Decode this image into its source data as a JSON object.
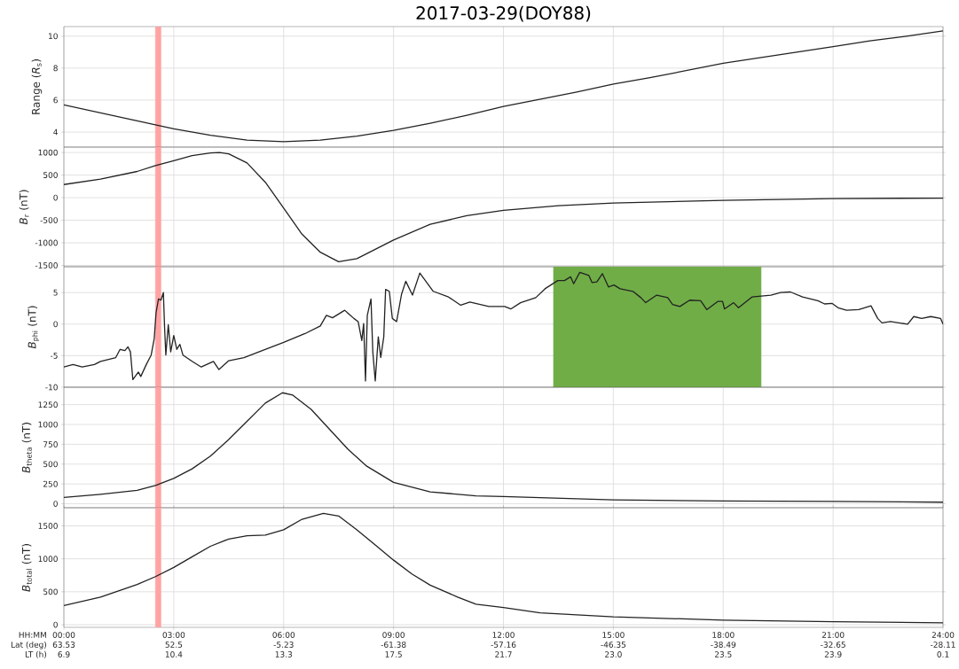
{
  "chart_data": [
    {
      "type": "line",
      "title": "2017-03-29(DOY88)",
      "ylabel": "Range (*R*$_{s}$)",
      "color": "#222222",
      "grid": true,
      "tick_labels": "y",
      "xlim": [
        "2017-03-29T00:00",
        "2017-03-30T00:00"
      ],
      "xticks": [
        "2017-03-29T00:00",
        "2017-03-29T03:00",
        "2017-03-29T06:00",
        "2017-03-29T09:00",
        "2017-03-29T12:00",
        "2017-03-29T15:00",
        "2017-03-29T18:00",
        "2017-03-29T21:00",
        "2017-03-30T00:00"
      ],
      "ylim": [
        3.06,
        10.6
      ],
      "yticks": [
        4,
        6,
        8,
        10
      ],
      "bands": [
        {
          "axis": "x",
          "from": "2017-03-29T02:30",
          "to": "2017-03-29T02:39",
          "color": "#ffa3a3"
        }
      ],
      "x": [
        "2017-03-29T00:00",
        "2017-03-29T01:00",
        "2017-03-29T02:00",
        "2017-03-29T02:30",
        "2017-03-29T03:00",
        "2017-03-29T04:00",
        "2017-03-29T05:00",
        "2017-03-29T06:00",
        "2017-03-29T07:00",
        "2017-03-29T08:00",
        "2017-03-29T09:00",
        "2017-03-29T10:00",
        "2017-03-29T11:00",
        "2017-03-29T12:00",
        "2017-03-29T13:00",
        "2017-03-29T14:00",
        "2017-03-29T15:00",
        "2017-03-29T16:00",
        "2017-03-29T17:00",
        "2017-03-29T18:00",
        "2017-03-29T19:00",
        "2017-03-29T20:00",
        "2017-03-29T21:00",
        "2017-03-29T22:00",
        "2017-03-29T23:00",
        "2017-03-30T00:00"
      ],
      "values": [
        5.7,
        5.2,
        4.7,
        4.45,
        4.2,
        3.8,
        3.5,
        3.4,
        3.5,
        3.75,
        4.1,
        4.55,
        5.05,
        5.6,
        6.05,
        6.5,
        7.0,
        7.4,
        7.85,
        8.3,
        8.65,
        9.0,
        9.35,
        9.7,
        10.0,
        10.33
      ]
    },
    {
      "type": "line",
      "ylabel": "*B*$_{r}$ (nT)",
      "color": "#222222",
      "grid": true,
      "tick_labels": "y",
      "xlim": [
        "2017-03-29T00:00",
        "2017-03-30T00:00"
      ],
      "xticks": [
        "2017-03-29T00:00",
        "2017-03-29T03:00",
        "2017-03-29T06:00",
        "2017-03-29T09:00",
        "2017-03-29T12:00",
        "2017-03-29T15:00",
        "2017-03-29T18:00",
        "2017-03-29T21:00",
        "2017-03-30T00:00"
      ],
      "ylim": [
        -1530,
        1120
      ],
      "yticks": [
        -1500,
        -1000,
        -500,
        0,
        500,
        1000
      ],
      "bands": [
        {
          "axis": "x",
          "from": "2017-03-29T02:30",
          "to": "2017-03-29T02:39",
          "color": "#ffa3a3"
        }
      ],
      "x": [
        "2017-03-29T00:00",
        "2017-03-29T01:00",
        "2017-03-29T02:00",
        "2017-03-29T02:30",
        "2017-03-29T03:00",
        "2017-03-29T03:30",
        "2017-03-29T04:00",
        "2017-03-29T04:15",
        "2017-03-29T04:30",
        "2017-03-29T05:00",
        "2017-03-29T05:30",
        "2017-03-29T06:00",
        "2017-03-29T06:30",
        "2017-03-29T07:00",
        "2017-03-29T07:30",
        "2017-03-29T08:00",
        "2017-03-29T09:00",
        "2017-03-29T10:00",
        "2017-03-29T11:00",
        "2017-03-29T12:00",
        "2017-03-29T13:30",
        "2017-03-29T15:00",
        "2017-03-29T18:00",
        "2017-03-29T21:00",
        "2017-03-30T00:00"
      ],
      "values": [
        290,
        410,
        580,
        710,
        820,
        930,
        990,
        1000,
        970,
        770,
        340,
        -230,
        -810,
        -1210,
        -1420,
        -1350,
        -940,
        -590,
        -400,
        -280,
        -180,
        -120,
        -60,
        -20,
        -10
      ]
    },
    {
      "type": "line",
      "ylabel": "*B*$_{phi}$ (nT)",
      "color": "#222222",
      "grid": true,
      "tick_labels": "y",
      "xlim": [
        "2017-03-29T00:00",
        "2017-03-30T00:00"
      ],
      "xticks": [
        "2017-03-29T00:00",
        "2017-03-29T03:00",
        "2017-03-29T06:00",
        "2017-03-29T09:00",
        "2017-03-29T12:00",
        "2017-03-29T15:00",
        "2017-03-29T18:00",
        "2017-03-29T21:00",
        "2017-03-30T00:00"
      ],
      "ylim": [
        -10,
        9.1
      ],
      "yticks": [
        -10,
        -5,
        0,
        5
      ],
      "bands": [
        {
          "axis": "x",
          "from": "2017-03-29T02:30",
          "to": "2017-03-29T02:39",
          "color": "#ffa3a3"
        },
        {
          "axis": "x",
          "from": "2017-03-29T13:22",
          "to": "2017-03-29T19:02",
          "color": "#70ad47"
        }
      ],
      "x": [
        "2017-03-29T00:00",
        "2017-03-29T00:15",
        "2017-03-29T00:30",
        "2017-03-29T00:50",
        "2017-03-29T01:00",
        "2017-03-29T01:25",
        "2017-03-29T01:32",
        "2017-03-29T01:40",
        "2017-03-29T01:45",
        "2017-03-29T01:49",
        "2017-03-29T01:53",
        "2017-03-29T02:02",
        "2017-03-29T02:06",
        "2017-03-29T02:15",
        "2017-03-29T02:23",
        "2017-03-29T02:28",
        "2017-03-29T02:31",
        "2017-03-29T02:35",
        "2017-03-29T02:39",
        "2017-03-29T02:43",
        "2017-03-29T02:45",
        "2017-03-29T02:47",
        "2017-03-29T02:51",
        "2017-03-29T02:55",
        "2017-03-29T03:00",
        "2017-03-29T03:05",
        "2017-03-29T03:10",
        "2017-03-29T03:15",
        "2017-03-29T03:30",
        "2017-03-29T03:45",
        "2017-03-29T04:05",
        "2017-03-29T04:14",
        "2017-03-29T04:30",
        "2017-03-29T04:55",
        "2017-03-29T05:25",
        "2017-03-29T06:00",
        "2017-03-29T06:35",
        "2017-03-29T07:00",
        "2017-03-29T07:10",
        "2017-03-29T07:20",
        "2017-03-29T07:40",
        "2017-03-29T07:47",
        "2017-03-29T07:55",
        "2017-03-29T08:02",
        "2017-03-29T08:08",
        "2017-03-29T08:11",
        "2017-03-29T08:14",
        "2017-03-29T08:17",
        "2017-03-29T08:23",
        "2017-03-29T08:26",
        "2017-03-29T08:30",
        "2017-03-29T08:35",
        "2017-03-29T08:39",
        "2017-03-29T08:44",
        "2017-03-29T08:47",
        "2017-03-29T08:53",
        "2017-03-29T08:58",
        "2017-03-29T09:05",
        "2017-03-29T09:13",
        "2017-03-29T09:20",
        "2017-03-29T09:31",
        "2017-03-29T09:43",
        "2017-03-29T10:05",
        "2017-03-29T10:30",
        "2017-03-29T10:50",
        "2017-03-29T11:05",
        "2017-03-29T11:36",
        "2017-03-29T12:02",
        "2017-03-29T12:12",
        "2017-03-29T12:28",
        "2017-03-29T12:53",
        "2017-03-29T13:08",
        "2017-03-29T13:29",
        "2017-03-29T13:40",
        "2017-03-29T13:50",
        "2017-03-29T13:55",
        "2017-03-29T14:05",
        "2017-03-29T14:20",
        "2017-03-29T14:25",
        "2017-03-29T14:33",
        "2017-03-29T14:42",
        "2017-03-29T14:52",
        "2017-03-29T15:01",
        "2017-03-29T15:11",
        "2017-03-29T15:32",
        "2017-03-29T15:45",
        "2017-03-29T15:53",
        "2017-03-29T16:11",
        "2017-03-29T16:29",
        "2017-03-29T16:37",
        "2017-03-29T16:49",
        "2017-03-29T17:05",
        "2017-03-29T17:23",
        "2017-03-29T17:33",
        "2017-03-29T17:51",
        "2017-03-29T17:59",
        "2017-03-29T18:02",
        "2017-03-29T18:17",
        "2017-03-29T18:25",
        "2017-03-29T18:47",
        "2017-03-29T19:18",
        "2017-03-29T19:34",
        "2017-03-29T19:50",
        "2017-03-29T20:10",
        "2017-03-29T20:35",
        "2017-03-29T20:46",
        "2017-03-29T20:58",
        "2017-03-29T21:08",
        "2017-03-29T21:22",
        "2017-03-29T21:42",
        "2017-03-29T22:02",
        "2017-03-29T22:13",
        "2017-03-29T22:20",
        "2017-03-29T22:34",
        "2017-03-29T23:02",
        "2017-03-29T23:12",
        "2017-03-29T23:25",
        "2017-03-29T23:40",
        "2017-03-29T23:56",
        "2017-03-30T00:00"
      ],
      "values": [
        -6.8,
        -6.4,
        -6.8,
        -6.4,
        -5.9,
        -5.3,
        -4.0,
        -4.2,
        -3.6,
        -4.4,
        -8.8,
        -7.6,
        -8.3,
        -6.4,
        -4.9,
        -2.3,
        1.8,
        4.0,
        3.8,
        5.0,
        -0.6,
        -4.9,
        -0.1,
        -4.4,
        -1.8,
        -4.0,
        -3.2,
        -4.9,
        -5.9,
        -6.8,
        -5.9,
        -7.2,
        -5.8,
        -5.3,
        -4.2,
        -2.9,
        -1.5,
        -0.3,
        1.4,
        1.0,
        2.2,
        1.6,
        0.9,
        0.4,
        -2.6,
        0.1,
        -9.0,
        1.4,
        4.0,
        -4.4,
        -9.0,
        -2.0,
        -5.3,
        -2.0,
        5.5,
        5.2,
        0.9,
        0.4,
        4.7,
        6.8,
        4.6,
        8.1,
        5.2,
        4.3,
        3.0,
        3.5,
        2.8,
        2.8,
        2.4,
        3.4,
        4.2,
        5.6,
        6.9,
        6.9,
        7.5,
        6.4,
        8.2,
        7.7,
        6.6,
        6.7,
        8.0,
        5.9,
        6.2,
        5.6,
        5.2,
        4.2,
        3.4,
        4.6,
        4.2,
        3.1,
        2.8,
        3.8,
        3.7,
        2.3,
        3.6,
        3.6,
        2.4,
        3.4,
        2.6,
        4.3,
        4.6,
        5.0,
        5.1,
        4.3,
        3.7,
        3.2,
        3.3,
        2.6,
        2.2,
        2.3,
        2.9,
        0.9,
        0.2,
        0.4,
        0.0,
        1.2,
        0.9,
        1.2,
        0.9,
        0.0
      ]
    },
    {
      "type": "line",
      "ylabel": "*B*$_{theta}$ (nT)",
      "color": "#222222",
      "grid": true,
      "tick_labels": "y",
      "xlim": [
        "2017-03-29T00:00",
        "2017-03-30T00:00"
      ],
      "xticks": [
        "2017-03-29T00:00",
        "2017-03-29T03:00",
        "2017-03-29T06:00",
        "2017-03-29T09:00",
        "2017-03-29T12:00",
        "2017-03-29T15:00",
        "2017-03-29T18:00",
        "2017-03-29T21:00",
        "2017-03-30T00:00"
      ],
      "ylim": [
        -50,
        1470
      ],
      "yticks": [
        0,
        250,
        500,
        750,
        1000,
        1250
      ],
      "bands": [
        {
          "axis": "x",
          "from": "2017-03-29T02:30",
          "to": "2017-03-29T02:39",
          "color": "#ffa3a3"
        }
      ],
      "x": [
        "2017-03-29T00:00",
        "2017-03-29T01:00",
        "2017-03-29T02:00",
        "2017-03-29T02:30",
        "2017-03-29T03:00",
        "2017-03-29T03:30",
        "2017-03-29T04:00",
        "2017-03-29T04:30",
        "2017-03-29T05:00",
        "2017-03-29T05:30",
        "2017-03-29T05:58",
        "2017-03-29T06:15",
        "2017-03-29T06:45",
        "2017-03-29T07:15",
        "2017-03-29T07:45",
        "2017-03-29T08:15",
        "2017-03-29T09:00",
        "2017-03-29T10:00",
        "2017-03-29T11:15",
        "2017-03-29T12:00",
        "2017-03-29T15:00",
        "2017-03-29T18:00",
        "2017-03-29T21:00",
        "2017-03-30T00:00"
      ],
      "values": [
        80,
        120,
        170,
        230,
        320,
        440,
        600,
        810,
        1040,
        1270,
        1400,
        1370,
        1190,
        940,
        690,
        480,
        270,
        150,
        100,
        90,
        50,
        35,
        30,
        20
      ]
    },
    {
      "type": "line",
      "ylabel": "*B*$_{total}$ (nT)",
      "xlabel": "HH:MM\nLat (deg)\nLT (h)",
      "color": "#222222",
      "grid": true,
      "xlim": [
        "2017-03-29T00:00",
        "2017-03-30T00:00"
      ],
      "xticks": [
        {
          "value": "2017-03-29T00:00",
          "label": "00:00\n63.53\n6.9"
        },
        {
          "value": "2017-03-29T03:00",
          "label": "03:00\n52.5\n10.4"
        },
        {
          "value": "2017-03-29T06:00",
          "label": "06:00\n-5.23\n13.3"
        },
        {
          "value": "2017-03-29T09:00",
          "label": "09:00\n-61.38\n17.5"
        },
        {
          "value": "2017-03-29T12:00",
          "label": "12:00\n-57.16\n21.7"
        },
        {
          "value": "2017-03-29T15:00",
          "label": "15:00\n-46.35\n23.0"
        },
        {
          "value": "2017-03-29T18:00",
          "label": "18:00\n-38.49\n23.5"
        },
        {
          "value": "2017-03-29T21:00",
          "label": "21:00\n-32.65\n23.9"
        },
        {
          "value": "2017-03-30T00:00",
          "label": "24:00\n-28.11\n0.1"
        }
      ],
      "ylim": [
        -40,
        1775
      ],
      "yticks": [
        0,
        500,
        1000,
        1500
      ],
      "bands": [
        {
          "axis": "x",
          "from": "2017-03-29T02:30",
          "to": "2017-03-29T02:39",
          "color": "#ffa3a3"
        }
      ],
      "x": [
        "2017-03-29T00:00",
        "2017-03-29T01:00",
        "2017-03-29T02:00",
        "2017-03-29T02:30",
        "2017-03-29T03:00",
        "2017-03-29T03:30",
        "2017-03-29T04:00",
        "2017-03-29T04:30",
        "2017-03-29T05:00",
        "2017-03-29T05:30",
        "2017-03-29T06:00",
        "2017-03-29T06:30",
        "2017-03-29T07:05",
        "2017-03-29T07:30",
        "2017-03-29T08:00",
        "2017-03-29T08:30",
        "2017-03-29T09:00",
        "2017-03-29T09:30",
        "2017-03-29T10:00",
        "2017-03-29T10:45",
        "2017-03-29T11:15",
        "2017-03-29T12:00",
        "2017-03-29T13:00",
        "2017-03-29T15:00",
        "2017-03-29T18:00",
        "2017-03-29T21:00",
        "2017-03-30T00:00"
      ],
      "values": [
        290,
        420,
        610,
        730,
        870,
        1030,
        1190,
        1300,
        1350,
        1360,
        1440,
        1600,
        1690,
        1650,
        1440,
        1210,
        980,
        770,
        600,
        420,
        310,
        260,
        180,
        120,
        70,
        45,
        30
      ]
    }
  ]
}
